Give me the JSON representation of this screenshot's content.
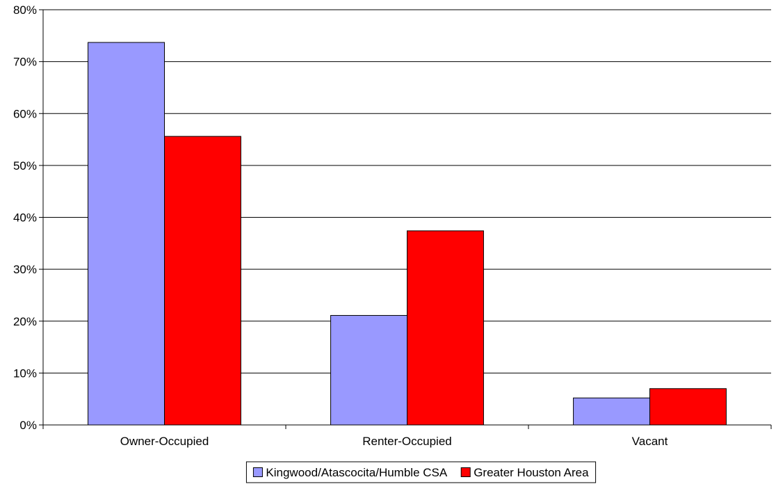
{
  "chart_data": {
    "type": "bar",
    "categories": [
      "Owner-Occupied",
      "Renter-Occupied",
      "Vacant"
    ],
    "series": [
      {
        "name": "Kingwood/Atascocita/Humble CSA",
        "values": [
          73.7,
          21.1,
          5.2
        ],
        "color": "#9999ff"
      },
      {
        "name": "Greater Houston Area",
        "values": [
          55.6,
          37.4,
          7.0
        ],
        "color": "#ff0000"
      }
    ],
    "ylim": [
      0,
      80
    ],
    "ytick_step": 10,
    "ytick_labels": [
      "0%",
      "10%",
      "20%",
      "30%",
      "40%",
      "50%",
      "60%",
      "70%",
      "80%"
    ],
    "grid": true,
    "legend": "bottom-center",
    "title": "",
    "xlabel": "",
    "ylabel": ""
  }
}
